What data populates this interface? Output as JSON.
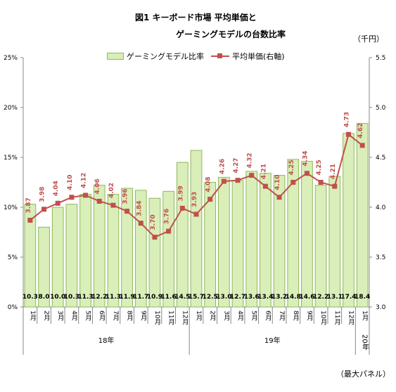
{
  "header": {
    "title_line1": "図1 キーボード市場 平均単価と",
    "title_line2": "ゲーミングモデルの台数比率",
    "unit_right": "（千円）",
    "footnote": "（最大パネル）"
  },
  "legend": {
    "bar_label": "ゲーミングモデル比率",
    "line_label": "平均単価(右軸)"
  },
  "colors": {
    "bar_fill": "#d9eeb9",
    "bar_stroke": "#8fb85a",
    "line": "#c0504d",
    "label_line": "#c0504d"
  },
  "chart_data": {
    "type": "bar",
    "categories": [
      "1月",
      "2月",
      "3月",
      "4月",
      "5月",
      "6月",
      "7月",
      "8月",
      "9月",
      "10月",
      "11月",
      "12月",
      "1月",
      "2月",
      "3月",
      "4月",
      "5月",
      "6月",
      "7月",
      "8月",
      "9月",
      "10月",
      "11月",
      "12月",
      "1月"
    ],
    "year_groups": [
      {
        "label": "18年",
        "start": 0,
        "end": 11
      },
      {
        "label": "19年",
        "start": 12,
        "end": 23
      },
      {
        "label": "20年",
        "start": 24,
        "end": 24
      }
    ],
    "series": [
      {
        "name": "ゲーミングモデル比率",
        "type": "bar",
        "axis": "left",
        "values": [
          10.3,
          8.0,
          10.0,
          10.3,
          11.3,
          12.2,
          11.3,
          11.9,
          11.7,
          10.9,
          11.6,
          14.5,
          15.7,
          12.5,
          13.0,
          12.7,
          13.6,
          13.4,
          13.2,
          14.8,
          14.6,
          12.2,
          13.1,
          17.4,
          18.4
        ],
        "labels": [
          "10.3",
          "8.0",
          "10.0",
          "10.3",
          "11.3",
          "12.2",
          "11.3",
          "11.9",
          "11.7",
          "10.9",
          "11.6",
          "14.5",
          "15.7",
          "12.5",
          "13.0",
          "12.7",
          "13.6",
          "13.4",
          "13.2",
          "14.8",
          "14.6",
          "12.2",
          "13.1",
          "17.4",
          "18.4"
        ]
      },
      {
        "name": "平均単価(右軸)",
        "type": "line",
        "axis": "right",
        "values": [
          3.87,
          3.98,
          4.04,
          4.1,
          4.12,
          4.06,
          4.02,
          3.96,
          3.84,
          3.7,
          3.76,
          3.99,
          3.93,
          4.08,
          4.26,
          4.27,
          4.32,
          4.21,
          4.1,
          4.25,
          4.34,
          4.25,
          4.21,
          4.73,
          4.62
        ],
        "labels": [
          "3.87",
          "3.98",
          "4.04",
          "4.10",
          "4.12",
          "4.06",
          "4.02",
          "3.96",
          "3.84",
          "3.70",
          "3.76",
          "3.99",
          "3.93",
          "4.08",
          "4.26",
          "4.27",
          "4.32",
          "4.21",
          "4.10",
          "4.25",
          "4.34",
          "4.25",
          "4.21",
          "4.73",
          "4.62"
        ]
      }
    ],
    "left_axis": {
      "min": 0,
      "max": 25,
      "ticks": [
        "0%",
        "5%",
        "10%",
        "15%",
        "20%",
        "25%"
      ]
    },
    "right_axis": {
      "min": 3.0,
      "max": 5.5,
      "ticks": [
        "3.0",
        "3.5",
        "4.0",
        "4.5",
        "5.0",
        "5.5"
      ]
    },
    "grid": false,
    "legend_position": "top"
  }
}
